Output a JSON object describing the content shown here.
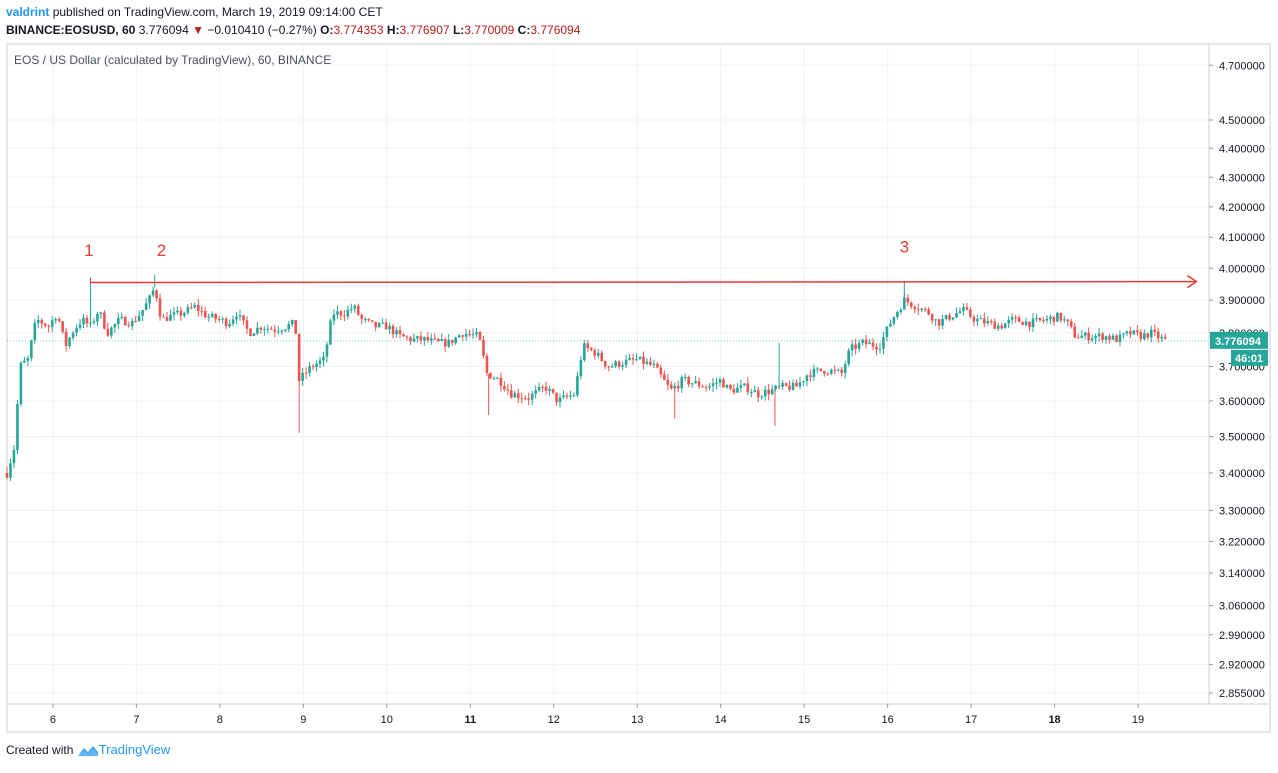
{
  "header": {
    "user": "valdrint",
    "published": "published on TradingView.com, March 19, 2019 09:14:00 CET",
    "symbol": "BINANCE:EOSUSD, 60",
    "last": "3.776094",
    "arrow": "▼",
    "change": "−0.010410 (−0.27%)",
    "o_label": "O:",
    "o_value": "3.774353",
    "h_label": "H:",
    "h_value": "3.776907",
    "l_label": "L:",
    "l_value": "3.770009",
    "c_label": "C:",
    "c_value": "3.776094"
  },
  "footer": {
    "created_with": "Created with",
    "brand": "TradingView"
  },
  "colors": {
    "up": "#26a69a",
    "down": "#ef5350",
    "annotation": "#e53935",
    "grid": "#eef0f3",
    "axis_text": "#131722"
  },
  "chart_data": {
    "type": "candlestick",
    "title": "EOS / US Dollar (calculated by TradingView), 60, BINANCE",
    "price_axis": {
      "scale": "log",
      "ticks": [
        "4.700000",
        "4.500000",
        "4.400000",
        "4.300000",
        "4.200000",
        "4.100000",
        "4.000000",
        "3.900000",
        "3.800000",
        "3.700000",
        "3.600000",
        "3.500000",
        "3.400000",
        "3.300000",
        "3.220000",
        "3.140000",
        "3.060000",
        "2.990000",
        "2.920000",
        "2.855000"
      ],
      "range": [
        2.83,
        4.78
      ]
    },
    "time_axis": {
      "ticks": [
        "6",
        "7",
        "8",
        "9",
        "10",
        "11",
        "12",
        "13",
        "14",
        "15",
        "16",
        "17",
        "18",
        "19"
      ],
      "bold": [
        "11",
        "18"
      ],
      "range_days": [
        5.45,
        19.85
      ]
    },
    "last_price": {
      "label": "3.776094",
      "countdown": "46:01",
      "value": 3.776094
    },
    "price_path": [
      [
        5.45,
        3.4
      ],
      [
        5.55,
        3.48
      ],
      [
        5.6,
        3.7
      ],
      [
        5.7,
        3.72
      ],
      [
        5.8,
        3.84
      ],
      [
        5.95,
        3.82
      ],
      [
        6.05,
        3.86
      ],
      [
        6.15,
        3.76
      ],
      [
        6.25,
        3.81
      ],
      [
        6.35,
        3.84
      ],
      [
        6.45,
        3.82
      ],
      [
        6.55,
        3.87
      ],
      [
        6.65,
        3.8
      ],
      [
        6.8,
        3.84
      ],
      [
        6.95,
        3.83
      ],
      [
        7.05,
        3.86
      ],
      [
        7.15,
        3.9
      ],
      [
        7.22,
        3.94
      ],
      [
        7.3,
        3.84
      ],
      [
        7.4,
        3.85
      ],
      [
        7.55,
        3.86
      ],
      [
        7.7,
        3.88
      ],
      [
        7.85,
        3.85
      ],
      [
        8.0,
        3.84
      ],
      [
        8.1,
        3.83
      ],
      [
        8.2,
        3.86
      ],
      [
        8.35,
        3.8
      ],
      [
        8.5,
        3.82
      ],
      [
        8.65,
        3.81
      ],
      [
        8.8,
        3.82
      ],
      [
        8.9,
        3.83
      ],
      [
        8.95,
        3.66
      ],
      [
        9.1,
        3.7
      ],
      [
        9.25,
        3.72
      ],
      [
        9.35,
        3.86
      ],
      [
        9.5,
        3.86
      ],
      [
        9.6,
        3.88
      ],
      [
        9.7,
        3.84
      ],
      [
        9.85,
        3.82
      ],
      [
        10.0,
        3.82
      ],
      [
        10.15,
        3.79
      ],
      [
        10.3,
        3.78
      ],
      [
        10.45,
        3.78
      ],
      [
        10.6,
        3.77
      ],
      [
        10.75,
        3.77
      ],
      [
        10.9,
        3.8
      ],
      [
        11.1,
        3.79
      ],
      [
        11.2,
        3.68
      ],
      [
        11.35,
        3.66
      ],
      [
        11.5,
        3.62
      ],
      [
        11.7,
        3.61
      ],
      [
        11.9,
        3.64
      ],
      [
        12.05,
        3.6
      ],
      [
        12.25,
        3.62
      ],
      [
        12.35,
        3.76
      ],
      [
        12.5,
        3.74
      ],
      [
        12.65,
        3.7
      ],
      [
        12.8,
        3.71
      ],
      [
        13.0,
        3.72
      ],
      [
        13.2,
        3.7
      ],
      [
        13.4,
        3.63
      ],
      [
        13.55,
        3.66
      ],
      [
        13.7,
        3.65
      ],
      [
        13.85,
        3.64
      ],
      [
        14.0,
        3.66
      ],
      [
        14.1,
        3.63
      ],
      [
        14.3,
        3.64
      ],
      [
        14.45,
        3.62
      ],
      [
        14.6,
        3.63
      ],
      [
        14.75,
        3.64
      ],
      [
        14.9,
        3.64
      ],
      [
        15.05,
        3.68
      ],
      [
        15.25,
        3.69
      ],
      [
        15.45,
        3.68
      ],
      [
        15.55,
        3.75
      ],
      [
        15.7,
        3.77
      ],
      [
        15.9,
        3.76
      ],
      [
        16.05,
        3.84
      ],
      [
        16.2,
        3.9
      ],
      [
        16.35,
        3.88
      ],
      [
        16.5,
        3.86
      ],
      [
        16.6,
        3.83
      ],
      [
        16.75,
        3.85
      ],
      [
        16.9,
        3.87
      ],
      [
        17.05,
        3.84
      ],
      [
        17.2,
        3.83
      ],
      [
        17.35,
        3.82
      ],
      [
        17.5,
        3.84
      ],
      [
        17.7,
        3.83
      ],
      [
        17.9,
        3.84
      ],
      [
        18.05,
        3.85
      ],
      [
        18.15,
        3.83
      ],
      [
        18.25,
        3.79
      ],
      [
        18.4,
        3.79
      ],
      [
        18.6,
        3.79
      ],
      [
        18.75,
        3.78
      ],
      [
        18.9,
        3.8
      ],
      [
        19.05,
        3.79
      ],
      [
        19.15,
        3.8
      ],
      [
        19.3,
        3.78
      ],
      [
        19.35,
        3.776
      ]
    ],
    "wicks_extreme": [
      {
        "x": 8.95,
        "low": 3.51
      },
      {
        "x": 11.22,
        "low": 3.56
      },
      {
        "x": 13.45,
        "low": 3.55
      },
      {
        "x": 14.65,
        "low": 3.53
      },
      {
        "x": 14.7,
        "high": 3.77
      },
      {
        "x": 7.22,
        "high": 3.98
      },
      {
        "x": 16.2,
        "high": 3.96
      },
      {
        "x": 6.45,
        "high": 3.97
      }
    ],
    "annotations": {
      "labels": [
        {
          "text": "1",
          "x": 6.43,
          "y": 4.04
        },
        {
          "text": "2",
          "x": 7.3,
          "y": 4.04
        },
        {
          "text": "3",
          "x": 16.2,
          "y": 4.05
        }
      ],
      "resistance_line": {
        "x1": 6.45,
        "y1": 3.955,
        "x2": 19.7,
        "y2": 3.958
      }
    }
  }
}
